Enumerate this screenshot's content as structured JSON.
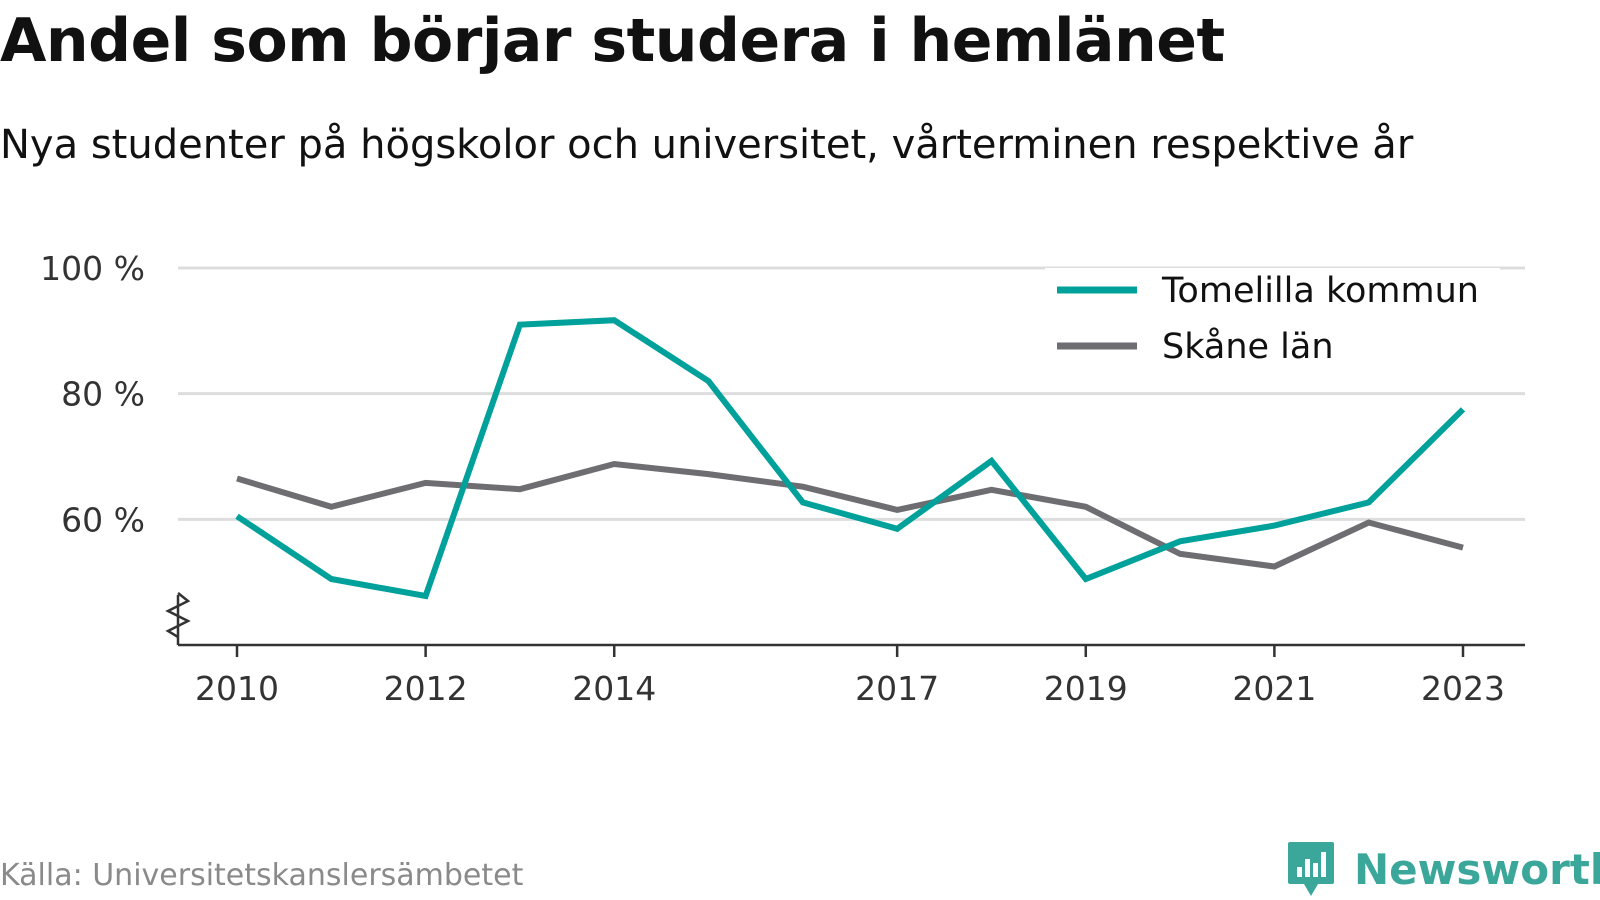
{
  "title": "Andel som börjar studera i hemlänet",
  "subtitle": "Nya studenter på högskolor och universitet, vårterminen respektive år",
  "source": "Källa: Universitetskanslersämbetet",
  "brand": {
    "name": "Newsworthy",
    "color": "#3aa79a",
    "icon": "newsworthy-logo-icon"
  },
  "colors": {
    "tomelilla": "#00a19a",
    "skane": "#6e6d72",
    "grid": "#dddddd",
    "axis": "#333333"
  },
  "chart_data": {
    "type": "line",
    "x": [
      2010,
      2011,
      2012,
      2013,
      2014,
      2015,
      2016,
      2017,
      2018,
      2019,
      2020,
      2021,
      2022,
      2023
    ],
    "x_tick_labels": [
      "2010",
      "2012",
      "2014",
      "2017",
      "2019",
      "2021",
      "2023"
    ],
    "y_tick_labels": [
      "100 %",
      "80 %",
      "60 %"
    ],
    "y_ticks": [
      100,
      80,
      60
    ],
    "ylim": [
      40,
      100
    ],
    "y_axis_break": true,
    "grid": true,
    "legend_position": "top-right",
    "series": [
      {
        "name": "Tomelilla kommun",
        "color": "#00a19a",
        "values": [
          60.5,
          50.5,
          47.8,
          91.0,
          91.7,
          82.0,
          62.7,
          58.5,
          69.3,
          50.5,
          56.5,
          59.0,
          62.7,
          77.5
        ]
      },
      {
        "name": "Skåne län",
        "color": "#6e6d72",
        "values": [
          66.5,
          62.0,
          65.8,
          64.8,
          68.8,
          67.2,
          65.2,
          61.5,
          64.7,
          62.0,
          54.5,
          52.5,
          59.5,
          55.5
        ]
      }
    ]
  }
}
